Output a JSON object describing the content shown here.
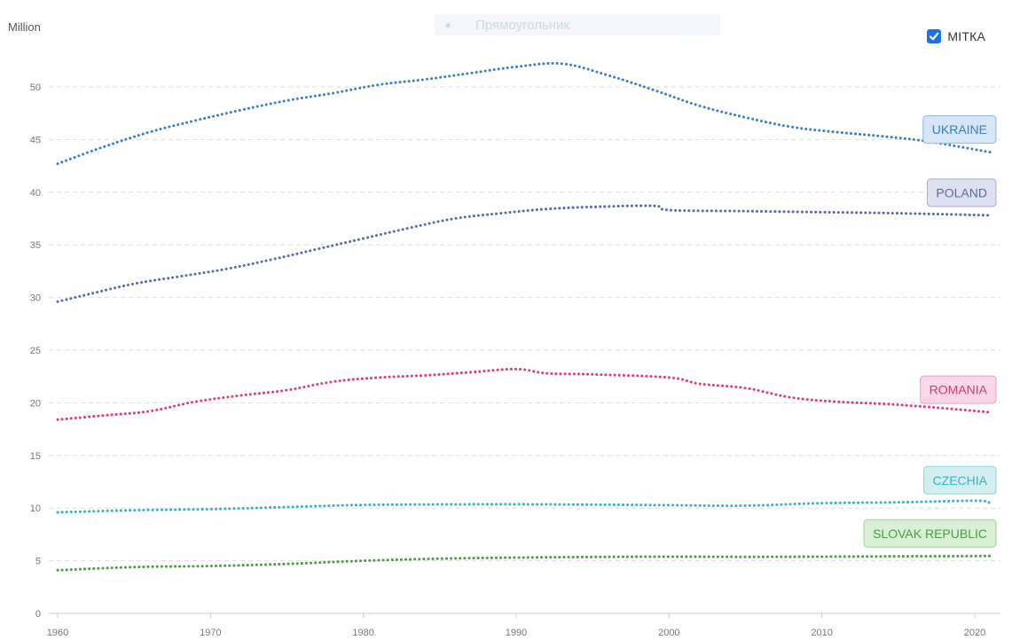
{
  "overlay": {
    "icon": "shield-icon",
    "text": "Прямоугольник"
  },
  "legend_toggle": {
    "label": "МІТКА",
    "checked": true
  },
  "chart_data": {
    "type": "line",
    "unit_label": "Million",
    "xlim": [
      1960,
      2021
    ],
    "ylim": [
      0,
      53
    ],
    "x_ticks": [
      1960,
      1970,
      1980,
      1990,
      2000,
      2010,
      2020
    ],
    "y_ticks": [
      0,
      5,
      10,
      15,
      20,
      25,
      30,
      35,
      40,
      45,
      50
    ],
    "grid": true,
    "series": [
      {
        "name": "UKRAINE",
        "color": "#3a7fbd",
        "label_bg": "#d6e6f5",
        "label_border": "#8fb8dd",
        "label_text_color": "#3a7fbd",
        "x": [
          1960,
          1963,
          1966,
          1969,
          1972,
          1975,
          1978,
          1981,
          1984,
          1987,
          1990,
          1993,
          1996,
          1999,
          2002,
          2005,
          2008,
          2011,
          2014,
          2017,
          2021
        ],
        "y": [
          42.7,
          44.3,
          45.7,
          46.8,
          47.8,
          48.7,
          49.4,
          50.2,
          50.7,
          51.3,
          51.9,
          52.2,
          51.1,
          49.7,
          48.2,
          47.1,
          46.2,
          45.7,
          45.3,
          44.8,
          43.8
        ]
      },
      {
        "name": "POLAND",
        "color": "#5a6aa0",
        "label_bg": "#dde0ee",
        "label_border": "#a6acd0",
        "label_text_color": "#5a6aa0",
        "x": [
          1960,
          1962,
          1965,
          1968,
          1971,
          1974,
          1977,
          1980,
          1983,
          1986,
          1989,
          1992,
          1995,
          1999,
          2000,
          2005,
          2010,
          2015,
          2021
        ],
        "y": [
          29.6,
          30.3,
          31.3,
          32.0,
          32.7,
          33.6,
          34.6,
          35.6,
          36.6,
          37.5,
          38.0,
          38.4,
          38.6,
          38.7,
          38.3,
          38.2,
          38.1,
          38.0,
          37.8
        ]
      },
      {
        "name": "ROMANIA",
        "color": "#e0397f",
        "label_bg": "#f9d7e6",
        "label_border": "#ef9cc0",
        "label_text_color": "#d93779",
        "x": [
          1960,
          1963,
          1966,
          1969,
          1972,
          1975,
          1978,
          1981,
          1984,
          1987,
          1990,
          1992,
          1995,
          2000,
          2002,
          2005,
          2008,
          2011,
          2014,
          2017,
          2021
        ],
        "y": [
          18.4,
          18.8,
          19.2,
          20.1,
          20.7,
          21.2,
          22.0,
          22.4,
          22.6,
          22.9,
          23.2,
          22.8,
          22.7,
          22.4,
          21.8,
          21.4,
          20.5,
          20.1,
          19.9,
          19.6,
          19.1
        ]
      },
      {
        "name": "CZECHIA",
        "color": "#36b3c0",
        "label_bg": "#d2eef1",
        "label_border": "#8fd3da",
        "label_text_color": "#36b3c0",
        "x": [
          1960,
          1965,
          1970,
          1975,
          1980,
          1985,
          1990,
          1995,
          2000,
          2005,
          2010,
          2015,
          2020,
          2021
        ],
        "y": [
          9.6,
          9.8,
          9.9,
          10.1,
          10.3,
          10.35,
          10.36,
          10.33,
          10.28,
          10.23,
          10.47,
          10.55,
          10.7,
          10.5
        ]
      },
      {
        "name": "SLOVAK REPUBLIC",
        "color": "#4c9a44",
        "label_bg": "#dbefd8",
        "label_border": "#9fcf99",
        "label_text_color": "#4c9a44",
        "x": [
          1960,
          1965,
          1970,
          1975,
          1980,
          1985,
          1990,
          1995,
          2000,
          2005,
          2010,
          2015,
          2021
        ],
        "y": [
          4.1,
          4.4,
          4.5,
          4.7,
          5.0,
          5.2,
          5.3,
          5.36,
          5.39,
          5.37,
          5.39,
          5.42,
          5.45
        ]
      }
    ]
  }
}
